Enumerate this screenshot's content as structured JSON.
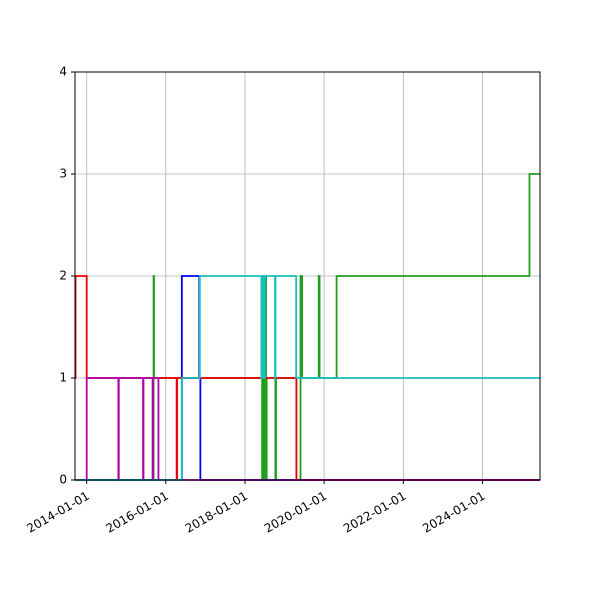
{
  "chart_data": {
    "type": "line",
    "title": "",
    "xlabel": "",
    "ylabel": "",
    "x_is_date": true,
    "xlim": [
      "2013-09-15",
      "2025-06-15"
    ],
    "ylim": [
      0,
      4
    ],
    "grid": true,
    "legend": "none",
    "step": "post",
    "x_ticks": [
      "2014-01-01",
      "2016-01-01",
      "2018-01-01",
      "2020-01-01",
      "2022-01-01",
      "2024-01-01"
    ],
    "y_ticks": [
      0,
      1,
      2,
      3,
      4
    ],
    "series": [
      {
        "color": "#1f9e1f",
        "x": [
          "2013-09-15",
          "2015-09-10",
          "2015-09-14",
          "2018-06-08",
          "2018-06-14",
          "2018-06-20",
          "2018-06-26",
          "2018-07-02",
          "2018-07-08",
          "2018-07-14",
          "2018-07-20",
          "2018-10-08",
          "2018-10-14",
          "2019-04-20",
          "2019-05-28",
          "2019-06-12",
          "2019-11-12",
          "2019-11-20",
          "2020-04-25",
          "2025-03-10",
          "2025-06-15"
        ],
        "values": [
          0,
          2,
          1,
          0,
          2,
          0,
          2,
          0,
          2,
          0,
          1,
          0,
          1,
          0,
          2,
          1,
          2,
          1,
          2,
          3,
          3
        ]
      },
      {
        "color": "#0000ee",
        "x": [
          "2013-09-15",
          "2016-05-28",
          "2016-11-05",
          "2016-11-15",
          "2025-06-15"
        ],
        "values": [
          0,
          2,
          1,
          0,
          0
        ]
      },
      {
        "color": "#ee0000",
        "x": [
          "2013-09-15",
          "2013-09-20",
          "2014-01-01",
          "2016-04-10",
          "2016-04-14",
          "2016-05-28",
          "2016-11-01",
          "2019-04-10",
          "2019-04-20",
          "2025-06-15"
        ],
        "values": [
          1,
          2,
          1,
          0,
          1,
          1,
          1,
          1,
          0,
          0
        ]
      },
      {
        "color": "#b000b0",
        "x": [
          "2013-09-15",
          "2014-01-01",
          "2014-10-20",
          "2014-10-24",
          "2015-06-05",
          "2015-06-09",
          "2015-09-01",
          "2015-09-05",
          "2015-10-25",
          "2015-10-29",
          "2025-06-15"
        ],
        "values": [
          0,
          1,
          0,
          1,
          0,
          1,
          0,
          1,
          0,
          0,
          0
        ]
      },
      {
        "color": "#17bfbf",
        "x": [
          "2013-09-15",
          "2016-05-28",
          "2016-06-01",
          "2016-11-10",
          "2018-06-01",
          "2018-06-05",
          "2018-06-15",
          "2018-06-19",
          "2018-06-29",
          "2018-07-03",
          "2018-10-05",
          "2018-10-09",
          "2019-04-18",
          "2019-04-25",
          "2025-06-15"
        ],
        "values": [
          0,
          1,
          1,
          2,
          1,
          2,
          1,
          2,
          1,
          2,
          1,
          2,
          1,
          1,
          1
        ]
      }
    ]
  }
}
